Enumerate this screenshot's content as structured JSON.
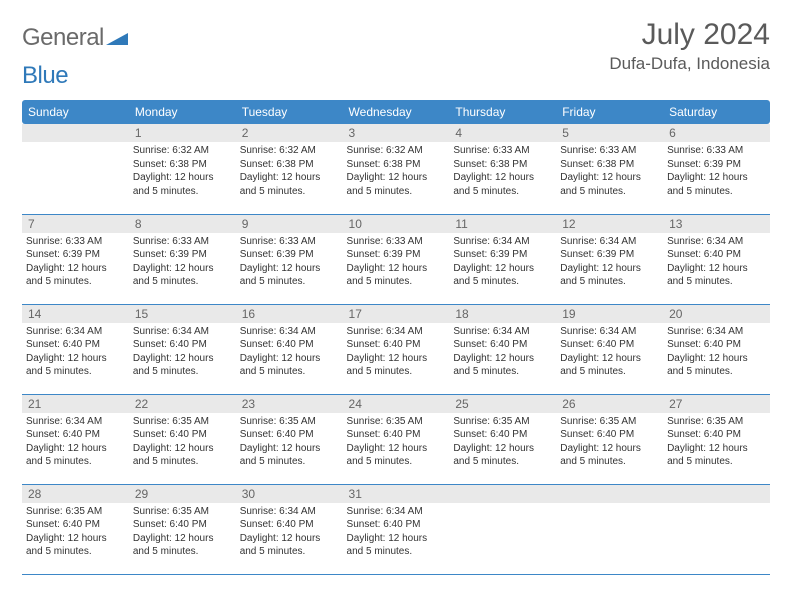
{
  "logo": {
    "text1": "General",
    "text2": "Blue",
    "color_gray": "#6a6a6a",
    "color_blue": "#2f79b9"
  },
  "title": "July 2024",
  "location": "Dufa-Dufa, Indonesia",
  "header_bg": "#3d87c7",
  "daynum_bg": "#e9e9e9",
  "row_border": "#3d87c7",
  "weekdays": [
    "Sunday",
    "Monday",
    "Tuesday",
    "Wednesday",
    "Thursday",
    "Friday",
    "Saturday"
  ],
  "weeks": [
    [
      {
        "num": "",
        "sunrise": "",
        "sunset": "",
        "daylight": ""
      },
      {
        "num": "1",
        "sunrise": "6:32 AM",
        "sunset": "6:38 PM",
        "daylight": "12 hours and 5 minutes."
      },
      {
        "num": "2",
        "sunrise": "6:32 AM",
        "sunset": "6:38 PM",
        "daylight": "12 hours and 5 minutes."
      },
      {
        "num": "3",
        "sunrise": "6:32 AM",
        "sunset": "6:38 PM",
        "daylight": "12 hours and 5 minutes."
      },
      {
        "num": "4",
        "sunrise": "6:33 AM",
        "sunset": "6:38 PM",
        "daylight": "12 hours and 5 minutes."
      },
      {
        "num": "5",
        "sunrise": "6:33 AM",
        "sunset": "6:38 PM",
        "daylight": "12 hours and 5 minutes."
      },
      {
        "num": "6",
        "sunrise": "6:33 AM",
        "sunset": "6:39 PM",
        "daylight": "12 hours and 5 minutes."
      }
    ],
    [
      {
        "num": "7",
        "sunrise": "6:33 AM",
        "sunset": "6:39 PM",
        "daylight": "12 hours and 5 minutes."
      },
      {
        "num": "8",
        "sunrise": "6:33 AM",
        "sunset": "6:39 PM",
        "daylight": "12 hours and 5 minutes."
      },
      {
        "num": "9",
        "sunrise": "6:33 AM",
        "sunset": "6:39 PM",
        "daylight": "12 hours and 5 minutes."
      },
      {
        "num": "10",
        "sunrise": "6:33 AM",
        "sunset": "6:39 PM",
        "daylight": "12 hours and 5 minutes."
      },
      {
        "num": "11",
        "sunrise": "6:34 AM",
        "sunset": "6:39 PM",
        "daylight": "12 hours and 5 minutes."
      },
      {
        "num": "12",
        "sunrise": "6:34 AM",
        "sunset": "6:39 PM",
        "daylight": "12 hours and 5 minutes."
      },
      {
        "num": "13",
        "sunrise": "6:34 AM",
        "sunset": "6:40 PM",
        "daylight": "12 hours and 5 minutes."
      }
    ],
    [
      {
        "num": "14",
        "sunrise": "6:34 AM",
        "sunset": "6:40 PM",
        "daylight": "12 hours and 5 minutes."
      },
      {
        "num": "15",
        "sunrise": "6:34 AM",
        "sunset": "6:40 PM",
        "daylight": "12 hours and 5 minutes."
      },
      {
        "num": "16",
        "sunrise": "6:34 AM",
        "sunset": "6:40 PM",
        "daylight": "12 hours and 5 minutes."
      },
      {
        "num": "17",
        "sunrise": "6:34 AM",
        "sunset": "6:40 PM",
        "daylight": "12 hours and 5 minutes."
      },
      {
        "num": "18",
        "sunrise": "6:34 AM",
        "sunset": "6:40 PM",
        "daylight": "12 hours and 5 minutes."
      },
      {
        "num": "19",
        "sunrise": "6:34 AM",
        "sunset": "6:40 PM",
        "daylight": "12 hours and 5 minutes."
      },
      {
        "num": "20",
        "sunrise": "6:34 AM",
        "sunset": "6:40 PM",
        "daylight": "12 hours and 5 minutes."
      }
    ],
    [
      {
        "num": "21",
        "sunrise": "6:34 AM",
        "sunset": "6:40 PM",
        "daylight": "12 hours and 5 minutes."
      },
      {
        "num": "22",
        "sunrise": "6:35 AM",
        "sunset": "6:40 PM",
        "daylight": "12 hours and 5 minutes."
      },
      {
        "num": "23",
        "sunrise": "6:35 AM",
        "sunset": "6:40 PM",
        "daylight": "12 hours and 5 minutes."
      },
      {
        "num": "24",
        "sunrise": "6:35 AM",
        "sunset": "6:40 PM",
        "daylight": "12 hours and 5 minutes."
      },
      {
        "num": "25",
        "sunrise": "6:35 AM",
        "sunset": "6:40 PM",
        "daylight": "12 hours and 5 minutes."
      },
      {
        "num": "26",
        "sunrise": "6:35 AM",
        "sunset": "6:40 PM",
        "daylight": "12 hours and 5 minutes."
      },
      {
        "num": "27",
        "sunrise": "6:35 AM",
        "sunset": "6:40 PM",
        "daylight": "12 hours and 5 minutes."
      }
    ],
    [
      {
        "num": "28",
        "sunrise": "6:35 AM",
        "sunset": "6:40 PM",
        "daylight": "12 hours and 5 minutes."
      },
      {
        "num": "29",
        "sunrise": "6:35 AM",
        "sunset": "6:40 PM",
        "daylight": "12 hours and 5 minutes."
      },
      {
        "num": "30",
        "sunrise": "6:34 AM",
        "sunset": "6:40 PM",
        "daylight": "12 hours and 5 minutes."
      },
      {
        "num": "31",
        "sunrise": "6:34 AM",
        "sunset": "6:40 PM",
        "daylight": "12 hours and 5 minutes."
      },
      {
        "num": "",
        "sunrise": "",
        "sunset": "",
        "daylight": ""
      },
      {
        "num": "",
        "sunrise": "",
        "sunset": "",
        "daylight": ""
      },
      {
        "num": "",
        "sunrise": "",
        "sunset": "",
        "daylight": ""
      }
    ]
  ],
  "labels": {
    "sunrise": "Sunrise:",
    "sunset": "Sunset:",
    "daylight": "Daylight:"
  }
}
